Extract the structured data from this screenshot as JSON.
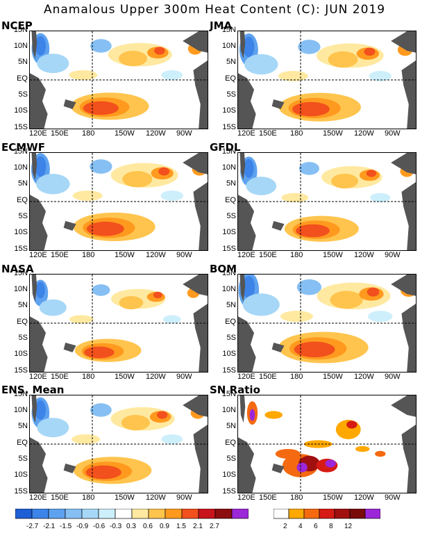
{
  "title": "Anamalous Upper 300m Heat Content (C): JUN 2019",
  "ylabels": [
    "15N",
    "10N",
    "5N",
    "EQ",
    "5S",
    "10S",
    "15S"
  ],
  "xlabels": [
    "120E",
    "150E",
    "180",
    "150W",
    "120W",
    "90W"
  ],
  "panels": [
    {
      "name": "NCEP",
      "kind": "anom"
    },
    {
      "name": "JMA",
      "kind": "anom"
    },
    {
      "name": "ECMWF",
      "kind": "anom"
    },
    {
      "name": "GFDL",
      "kind": "anom"
    },
    {
      "name": "NASA",
      "kind": "anom"
    },
    {
      "name": "BOM",
      "kind": "anom"
    },
    {
      "name": "ENS. Mean",
      "kind": "anom"
    },
    {
      "name": "SN Ratio",
      "kind": "sn"
    }
  ],
  "colorbar_anom": {
    "colors": [
      "#1f5fd6",
      "#3d84e8",
      "#5ea2ef",
      "#86bff3",
      "#a6d7f7",
      "#cdeffb",
      "#ffffff",
      "#ffe9a0",
      "#ffc44d",
      "#ff9a1f",
      "#f2501c",
      "#c8141c",
      "#8c0d10",
      "#9c27d8"
    ],
    "labels": [
      "-2.7",
      "-2.1",
      "-1.5",
      "-0.9",
      "-0.6",
      "-0.3",
      "0.3",
      "0.6",
      "0.9",
      "1.5",
      "2.1",
      "2.7"
    ]
  },
  "colorbar_sn": {
    "colors": [
      "#ffffff",
      "#ffa800",
      "#f56a10",
      "#d61b14",
      "#a0100f",
      "#7a0b0b",
      "#9c27d8"
    ],
    "labels": [
      "2",
      "4",
      "6",
      "8",
      "12"
    ]
  },
  "chart_data": {
    "type": "heatmap",
    "title": "Anamalous Upper 300m Heat Content (C): JUN 2019",
    "x_ticks": [
      "120E",
      "150E",
      "180",
      "150W",
      "120W",
      "90W"
    ],
    "y_ticks": [
      "15N",
      "10N",
      "5N",
      "EQ",
      "5S",
      "10S",
      "15S"
    ],
    "xlim": [
      "120E",
      "75W"
    ],
    "ylim": [
      "15S",
      "15N"
    ],
    "anomaly_levels": [
      -2.7,
      -2.1,
      -1.5,
      -0.9,
      -0.6,
      -0.3,
      0.3,
      0.6,
      0.9,
      1.5,
      2.1,
      2.7
    ],
    "sn_levels": [
      2,
      4,
      6,
      8,
      12
    ],
    "panels": [
      "NCEP",
      "JMA",
      "ECMWF",
      "GFDL",
      "NASA",
      "BOM",
      "ENS. Mean",
      "SN Ratio"
    ],
    "features": [
      {
        "panel": "all",
        "label": "warm anomaly",
        "lon": "165W",
        "lat": "8S",
        "value_approx": 1.5
      },
      {
        "panel": "all",
        "label": "warm anomaly",
        "lon": "130W",
        "lat": "10N",
        "value_approx": 1.5
      },
      {
        "panel": "all",
        "label": "cold anomaly",
        "lon": "125E",
        "lat": "12N",
        "value_approx": -0.9
      }
    ]
  }
}
